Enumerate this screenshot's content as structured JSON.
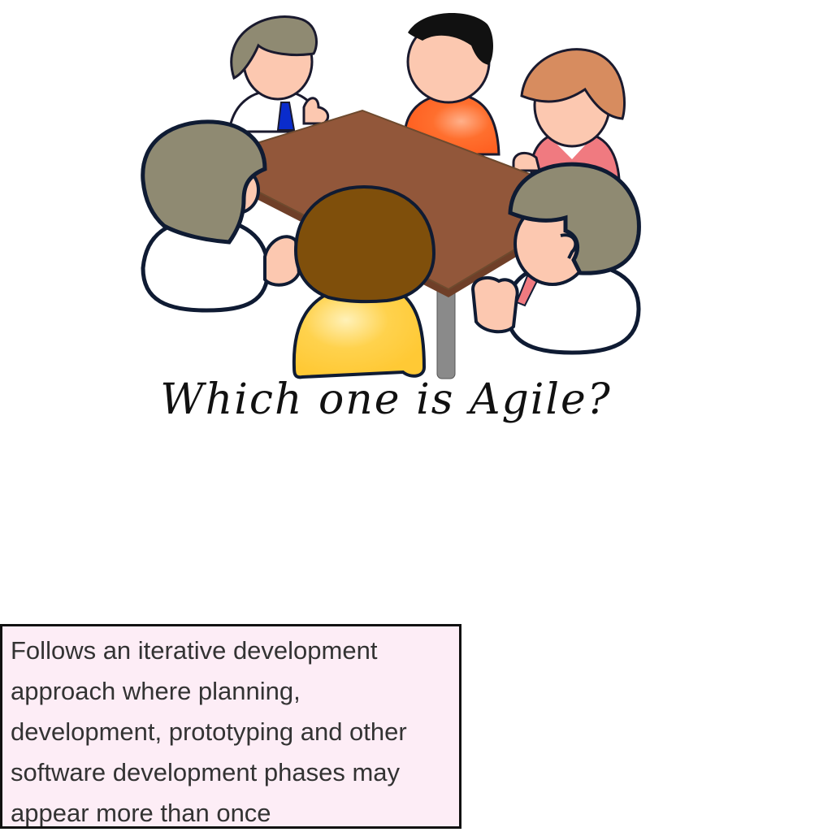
{
  "question": {
    "text": "Which one is Agile?"
  },
  "answer_card": {
    "text": "Follows an iterative development approach where planning, development, prototyping and other software development phases may appear more than once"
  },
  "illustration": {
    "subject": "meeting-table-people",
    "colors": {
      "table_top": "#92573a",
      "table_leg": "#8a8a8a",
      "skin": "#fcc8b0",
      "outline": "#1a1a2e",
      "gray_hair": "#8f8a72",
      "orange_shirt": "#ff6f2e",
      "red_hair": "#d78c5f",
      "pink_shirt": "#f07a80",
      "brown_hair": "#7f4f0b",
      "yellow_shirt": "#ffd24d",
      "tie": "#0a2ccc"
    }
  }
}
